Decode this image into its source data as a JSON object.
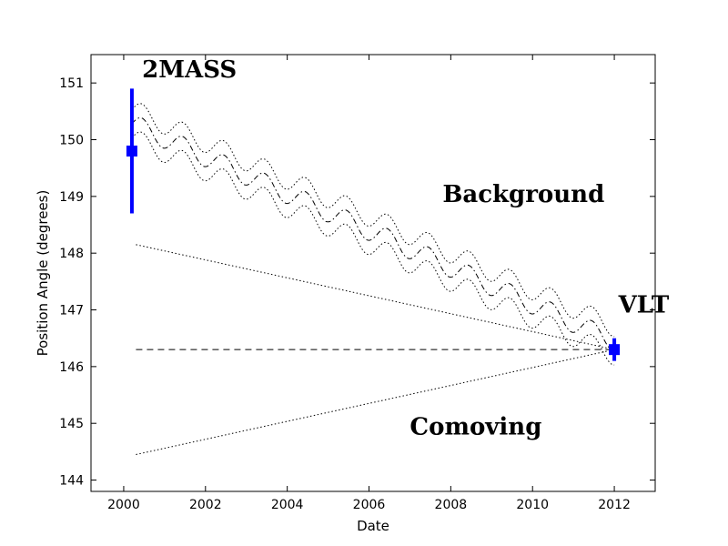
{
  "chart_data": {
    "type": "line",
    "title": "",
    "xlabel": "Date",
    "ylabel": "Position Angle (degrees)",
    "xlim": [
      1999.2,
      2013.0
    ],
    "ylim": [
      143.8,
      151.5
    ],
    "xticks": [
      2000,
      2002,
      2004,
      2006,
      2008,
      2010,
      2012
    ],
    "xtick_labels": [
      "2000",
      "2002",
      "2004",
      "2006",
      "2008",
      "2010",
      "2012"
    ],
    "yticks": [
      144,
      145,
      146,
      147,
      148,
      149,
      150,
      151
    ],
    "ytick_labels": [
      "144",
      "145",
      "146",
      "147",
      "148",
      "149",
      "150",
      "151"
    ],
    "measurements": [
      {
        "name": "2MASS",
        "x": 2000.2,
        "y": 149.8,
        "yerr": 1.1,
        "color": "#0000ff"
      },
      {
        "name": "VLT",
        "x": 2012.0,
        "y": 146.3,
        "yerr": 0.2,
        "color": "#0000ff"
      }
    ],
    "background_track": {
      "start": [
        2000.2,
        150.28
      ],
      "end": [
        2012.0,
        146.45
      ],
      "oscillation_amplitude": 0.18,
      "oscillation_period": 1.0,
      "band_halfwidth": 0.25
    },
    "comoving": {
      "y": 146.3,
      "x_range": [
        2000.3,
        2012.0
      ],
      "envelope_upper_start": 148.15,
      "envelope_lower_start": 144.45
    },
    "annotations": [
      {
        "text": "2MASS",
        "x": 2000.45,
        "y": 151.1
      },
      {
        "text": "Background",
        "x": 2007.8,
        "y": 148.9
      },
      {
        "text": "VLT",
        "x": 2012.1,
        "y": 146.95
      },
      {
        "text": "Comoving",
        "x": 2007.0,
        "y": 144.8
      }
    ]
  }
}
